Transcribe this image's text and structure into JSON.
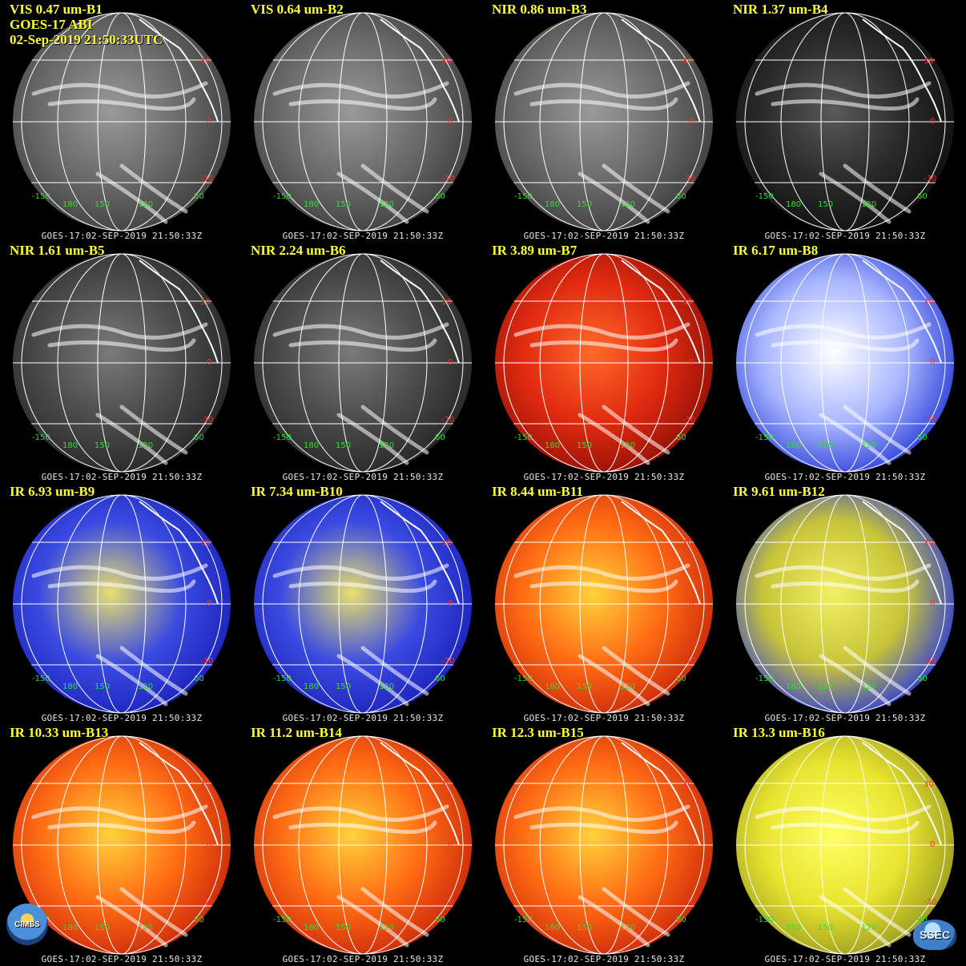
{
  "header_extra": {
    "satellite": "GOES-17 ABI",
    "timestamp": "02-Sep-2019 21:50:33UTC"
  },
  "panels": [
    {
      "title": "VIS 0.47 um-B1",
      "time": "GOES-17:02-SEP-2019 21:50:33Z",
      "palette": "gray"
    },
    {
      "title": "VIS 0.64 um-B2",
      "time": "GOES-17:02-SEP-2019 21:50:33Z",
      "palette": "gray"
    },
    {
      "title": "NIR 0.86 um-B3",
      "time": "GOES-17:02-SEP-2019 21:50:33Z",
      "palette": "gray"
    },
    {
      "title": "NIR 1.37 um-B4",
      "time": "GOES-17:02-SEP-2019 21:50:33Z",
      "palette": "dark"
    },
    {
      "title": "NIR 1.61 um-B5",
      "time": "GOES-17:02-SEP-2019 21:50:33Z",
      "palette": "darkgray"
    },
    {
      "title": "NIR 2.24 um-B6",
      "time": "GOES-17:02-SEP-2019 21:50:33Z",
      "palette": "darkgray"
    },
    {
      "title": "IR 3.89 um-B7",
      "time": "GOES-17:02-SEP-2019 21:50:33Z",
      "palette": "red"
    },
    {
      "title": "IR 6.17 um-B8",
      "time": "GOES-17:02-SEP-2019 21:50:33Z",
      "palette": "whiteblue"
    },
    {
      "title": "IR 6.93 um-B9",
      "time": "GOES-17:02-SEP-2019 21:50:33Z",
      "palette": "blueyellow"
    },
    {
      "title": "IR 7.34 um-B10",
      "time": "GOES-17:02-SEP-2019 21:50:33Z",
      "palette": "blueyellow"
    },
    {
      "title": "IR 8.44 um-B11",
      "time": "GOES-17:02-SEP-2019 21:50:33Z",
      "palette": "orange"
    },
    {
      "title": "IR 9.61 um-B12",
      "time": "GOES-17:02-SEP-2019 21:50:33Z",
      "palette": "yellowblue"
    },
    {
      "title": "IR 10.33 um-B13",
      "time": "GOES-17:02-SEP-2019 21:50:33Z",
      "palette": "orange"
    },
    {
      "title": "IR 11.2 um-B14",
      "time": "GOES-17:02-SEP-2019 21:50:33Z",
      "palette": "orange"
    },
    {
      "title": "IR 12.3 um-B15",
      "time": "GOES-17:02-SEP-2019 21:50:33Z",
      "palette": "orange"
    },
    {
      "title": "IR 13.3 um-B16",
      "time": "GOES-17:02-SEP-2019 21:50:33Z",
      "palette": "yellow"
    }
  ],
  "lat_labels": [
    "30",
    "0",
    "-30"
  ],
  "lon_labels": [
    "-150",
    "180",
    "150",
    "120",
    "60"
  ],
  "logos": {
    "left": "CIMSS",
    "right": "SSEC"
  },
  "colors": {
    "title": "#ffff33",
    "grid_line": "#ffffff",
    "lat_label": "#ff3030",
    "lon_label": "#33dd33",
    "background": "#000000"
  }
}
